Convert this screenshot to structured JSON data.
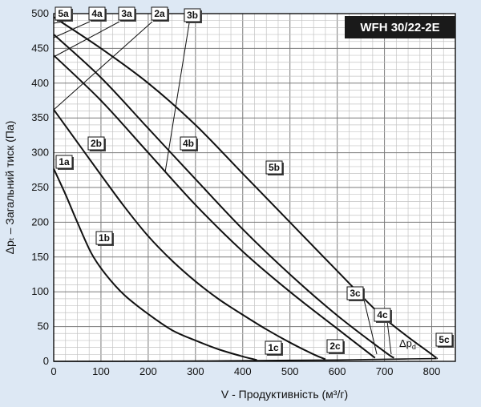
{
  "chart_data": {
    "type": "line",
    "title": "WFH 30/22-2E",
    "xlabel": "V - Продуктивність (м³/г)",
    "ylabel": "Δpₜ – Загальний тиск (Па)",
    "xlim": [
      0,
      850
    ],
    "ylim": [
      0,
      500
    ],
    "x_ticks": [
      0,
      100,
      200,
      300,
      400,
      500,
      600,
      700,
      800
    ],
    "y_ticks": [
      0,
      50,
      100,
      150,
      200,
      250,
      300,
      350,
      400,
      450,
      500
    ],
    "grid": true,
    "series": [
      {
        "name": "1",
        "x": [
          0,
          25,
          50,
          80,
          110,
          150,
          200,
          250,
          300,
          350,
          400,
          430
        ],
        "y": [
          277,
          240,
          200,
          155,
          125,
          95,
          68,
          45,
          30,
          17,
          7,
          2
        ]
      },
      {
        "name": "2",
        "x": [
          0,
          50,
          100,
          150,
          200,
          250,
          300,
          350,
          400,
          450,
          500,
          550,
          575
        ],
        "y": [
          362,
          315,
          268,
          222,
          180,
          145,
          115,
          89,
          67,
          46,
          27,
          10,
          3
        ]
      },
      {
        "name": "3",
        "x": [
          0,
          100,
          200,
          300,
          400,
          500,
          600,
          680
        ],
        "y": [
          440,
          375,
          300,
          225,
          158,
          100,
          47,
          5
        ]
      },
      {
        "name": "4",
        "x": [
          0,
          100,
          200,
          300,
          400,
          500,
          600,
          700,
          720
        ],
        "y": [
          470,
          408,
          335,
          262,
          190,
          125,
          66,
          14,
          5
        ]
      },
      {
        "name": "5",
        "x": [
          0,
          100,
          200,
          300,
          400,
          500,
          600,
          700,
          800,
          810
        ],
        "y": [
          495,
          450,
          400,
          340,
          270,
          200,
          130,
          62,
          10,
          5
        ]
      },
      {
        "name": "Δpd",
        "x": [
          0,
          100,
          200,
          300,
          400,
          500,
          600,
          700,
          810
        ],
        "y": [
          0,
          0.1,
          0.2,
          0.5,
          1,
          1.5,
          2,
          3,
          4
        ]
      }
    ],
    "labels": [
      {
        "id": "1a",
        "text": "1a"
      },
      {
        "id": "1b",
        "text": "1b"
      },
      {
        "id": "1c",
        "text": "1c"
      },
      {
        "id": "2a",
        "text": "2a"
      },
      {
        "id": "2b",
        "text": "2b"
      },
      {
        "id": "2c",
        "text": "2c"
      },
      {
        "id": "3a",
        "text": "3a"
      },
      {
        "id": "3b",
        "text": "3b"
      },
      {
        "id": "3c",
        "text": "3c"
      },
      {
        "id": "4a",
        "text": "4a"
      },
      {
        "id": "4b",
        "text": "4b"
      },
      {
        "id": "4c",
        "text": "4c"
      },
      {
        "id": "5a",
        "text": "5a"
      },
      {
        "id": "5b",
        "text": "5b"
      },
      {
        "id": "5c",
        "text": "5c"
      }
    ],
    "dp_label": "Δp",
    "dp_sub": "d"
  },
  "colors": {
    "background": "#dde8f4",
    "plot_bg": "#ffffff",
    "curve": "#111111",
    "grid": "#b8b8b8",
    "title_bg": "#1a1a1a",
    "label_fill": "#ffffff"
  }
}
